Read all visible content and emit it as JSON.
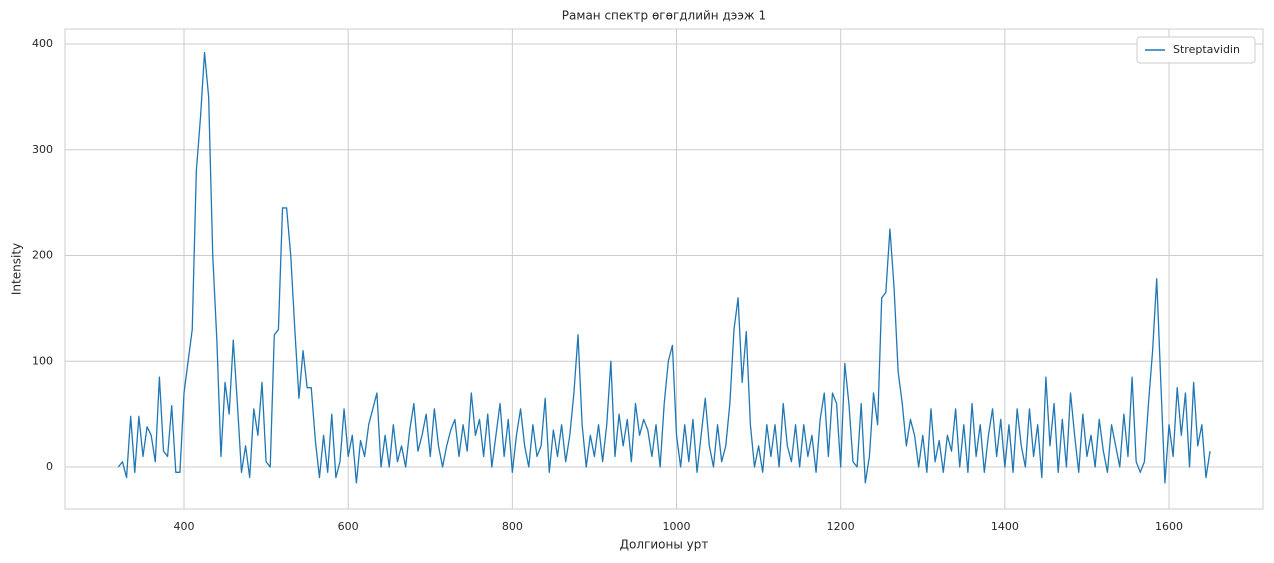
{
  "chart_data": {
    "type": "line",
    "title": "Раман спектр өгөгдлийн дээж 1",
    "xlabel": "Долгионы урт",
    "ylabel": "Intensity",
    "x": [
      320,
      325,
      330,
      335,
      340,
      345,
      350,
      355,
      360,
      365,
      370,
      375,
      380,
      385,
      390,
      395,
      400,
      405,
      410,
      415,
      420,
      425,
      430,
      435,
      440,
      445,
      450,
      455,
      460,
      465,
      470,
      475,
      480,
      485,
      490,
      495,
      500,
      505,
      510,
      515,
      520,
      525,
      530,
      535,
      540,
      545,
      550,
      555,
      560,
      565,
      570,
      575,
      580,
      585,
      590,
      595,
      600,
      605,
      610,
      615,
      620,
      625,
      630,
      635,
      640,
      645,
      650,
      655,
      660,
      665,
      670,
      675,
      680,
      685,
      690,
      695,
      700,
      705,
      710,
      715,
      720,
      725,
      730,
      735,
      740,
      745,
      750,
      755,
      760,
      765,
      770,
      775,
      780,
      785,
      790,
      795,
      800,
      805,
      810,
      815,
      820,
      825,
      830,
      835,
      840,
      845,
      850,
      855,
      860,
      865,
      870,
      875,
      880,
      885,
      890,
      895,
      900,
      905,
      910,
      915,
      920,
      925,
      930,
      935,
      940,
      945,
      950,
      955,
      960,
      965,
      970,
      975,
      980,
      985,
      990,
      995,
      1000,
      1005,
      1010,
      1015,
      1020,
      1025,
      1030,
      1035,
      1040,
      1045,
      1050,
      1055,
      1060,
      1065,
      1070,
      1075,
      1080,
      1085,
      1090,
      1095,
      1100,
      1105,
      1110,
      1115,
      1120,
      1125,
      1130,
      1135,
      1140,
      1145,
      1150,
      1155,
      1160,
      1165,
      1170,
      1175,
      1180,
      1185,
      1190,
      1195,
      1200,
      1205,
      1210,
      1215,
      1220,
      1225,
      1230,
      1235,
      1240,
      1245,
      1250,
      1255,
      1260,
      1265,
      1270,
      1275,
      1280,
      1285,
      1290,
      1295,
      1300,
      1305,
      1310,
      1315,
      1320,
      1325,
      1330,
      1335,
      1340,
      1345,
      1350,
      1355,
      1360,
      1365,
      1370,
      1375,
      1380,
      1385,
      1390,
      1395,
      1400,
      1405,
      1410,
      1415,
      1420,
      1425,
      1430,
      1435,
      1440,
      1445,
      1450,
      1455,
      1460,
      1465,
      1470,
      1475,
      1480,
      1485,
      1490,
      1495,
      1500,
      1505,
      1510,
      1515,
      1520,
      1525,
      1530,
      1535,
      1540,
      1545,
      1550,
      1555,
      1560,
      1565,
      1570,
      1575,
      1580,
      1585,
      1590,
      1595,
      1600,
      1605,
      1610,
      1615,
      1620,
      1625,
      1630,
      1635,
      1640,
      1645,
      1650
    ],
    "series": [
      {
        "name": "Streptavidin",
        "color": "#1f77b4",
        "values": [
          0,
          5,
          -10,
          48,
          -5,
          48,
          10,
          38,
          30,
          5,
          85,
          15,
          10,
          58,
          -5,
          -5,
          70,
          100,
          130,
          280,
          330,
          392,
          350,
          200,
          120,
          10,
          80,
          50,
          120,
          60,
          -5,
          20,
          -10,
          55,
          30,
          80,
          5,
          0,
          125,
          130,
          245,
          245,
          200,
          130,
          65,
          110,
          75,
          75,
          25,
          -10,
          30,
          -5,
          50,
          -10,
          5,
          55,
          10,
          30,
          -15,
          25,
          10,
          40,
          55,
          70,
          0,
          30,
          0,
          40,
          5,
          20,
          0,
          35,
          60,
          15,
          30,
          50,
          10,
          55,
          20,
          0,
          20,
          35,
          45,
          10,
          40,
          15,
          70,
          30,
          45,
          10,
          50,
          0,
          30,
          60,
          10,
          45,
          -5,
          30,
          55,
          20,
          0,
          40,
          10,
          20,
          65,
          -5,
          35,
          10,
          40,
          5,
          30,
          70,
          125,
          40,
          0,
          30,
          10,
          40,
          5,
          40,
          100,
          10,
          50,
          20,
          45,
          5,
          60,
          30,
          45,
          35,
          10,
          40,
          0,
          60,
          100,
          115,
          30,
          0,
          40,
          5,
          45,
          -5,
          30,
          65,
          20,
          0,
          40,
          5,
          20,
          60,
          130,
          160,
          80,
          128,
          40,
          0,
          20,
          -5,
          40,
          10,
          40,
          0,
          60,
          20,
          5,
          40,
          0,
          40,
          10,
          30,
          -5,
          45,
          70,
          10,
          70,
          60,
          0,
          98,
          60,
          5,
          0,
          60,
          -15,
          10,
          70,
          40,
          160,
          165,
          225,
          170,
          90,
          60,
          20,
          45,
          30,
          0,
          30,
          -5,
          55,
          5,
          25,
          -5,
          30,
          15,
          55,
          0,
          40,
          -5,
          60,
          10,
          40,
          -5,
          30,
          55,
          10,
          45,
          0,
          40,
          -5,
          55,
          20,
          0,
          55,
          10,
          40,
          -10,
          85,
          20,
          60,
          -5,
          45,
          0,
          70,
          30,
          -5,
          50,
          10,
          30,
          0,
          45,
          15,
          -5,
          40,
          20,
          0,
          50,
          10,
          85,
          5,
          -5,
          5,
          60,
          110,
          178,
          80,
          -15,
          40,
          10,
          75,
          30,
          70,
          0,
          80,
          20,
          40,
          -10,
          15
        ]
      }
    ],
    "xlim": [
      255,
      1714.5
    ],
    "ylim": [
      -39.7,
      414.2
    ],
    "xticks": [
      400,
      600,
      800,
      1000,
      1200,
      1400,
      1600
    ],
    "yticks": [
      0,
      100,
      200,
      300,
      400
    ],
    "grid": true,
    "legend": "upper-right"
  }
}
